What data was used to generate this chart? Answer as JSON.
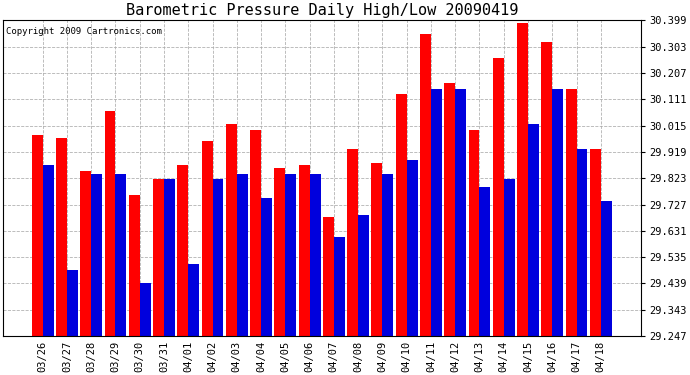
{
  "title": "Barometric Pressure Daily High/Low 20090419",
  "copyright": "Copyright 2009 Cartronics.com",
  "dates": [
    "03/26",
    "03/27",
    "03/28",
    "03/29",
    "03/30",
    "03/31",
    "04/01",
    "04/02",
    "04/03",
    "04/04",
    "04/05",
    "04/06",
    "04/07",
    "04/08",
    "04/09",
    "04/10",
    "04/11",
    "04/12",
    "04/13",
    "04/14",
    "04/15",
    "04/16",
    "04/17",
    "04/18"
  ],
  "highs": [
    29.98,
    29.97,
    29.85,
    30.07,
    29.76,
    29.82,
    29.87,
    29.96,
    30.02,
    30.0,
    29.86,
    29.87,
    29.68,
    29.93,
    29.88,
    30.13,
    30.35,
    30.17,
    30.0,
    30.26,
    30.39,
    30.32,
    30.15,
    29.93
  ],
  "lows": [
    29.87,
    29.49,
    29.84,
    29.84,
    29.44,
    29.82,
    29.51,
    29.82,
    29.84,
    29.75,
    29.84,
    29.84,
    29.61,
    29.69,
    29.84,
    29.89,
    30.15,
    30.15,
    29.79,
    29.82,
    30.02,
    30.15,
    29.93,
    29.74
  ],
  "high_color": "#ff0000",
  "low_color": "#0000dd",
  "background_color": "#ffffff",
  "plot_bg_color": "#ffffff",
  "grid_color": "#aaaaaa",
  "ymin": 29.247,
  "ymax": 30.399,
  "yticks": [
    29.247,
    29.343,
    29.439,
    29.535,
    29.631,
    29.727,
    29.823,
    29.919,
    30.015,
    30.111,
    30.207,
    30.303,
    30.399
  ],
  "title_fontsize": 11,
  "tick_fontsize": 7.5,
  "copyright_fontsize": 6.5
}
